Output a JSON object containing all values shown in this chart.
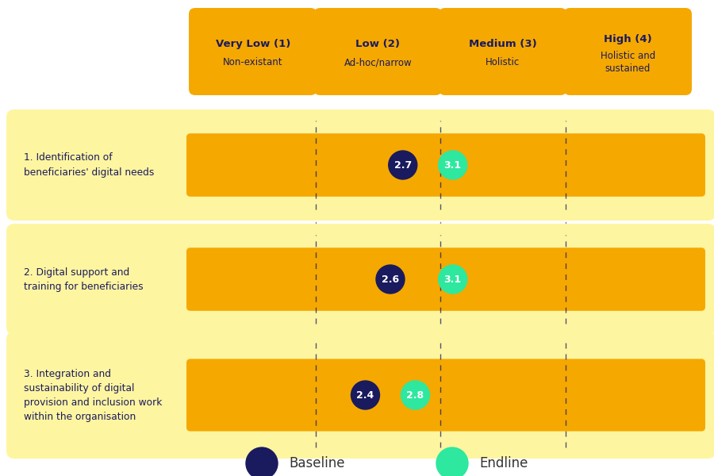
{
  "bg_color": "#ffffff",
  "header_bg": "#F5A800",
  "row_bg_light": "#FEF5A0",
  "row_bg_dark": "#F5A800",
  "header_text_color": "#1a1a5e",
  "row_text_color": "#1a1a5e",
  "dashed_line_color": "#1a1a5e",
  "baseline_color": "#1a1a5e",
  "endline_color": "#2de89e",
  "headers": [
    {
      "bold": "Very Low (1)",
      "sub": "Non-existant"
    },
    {
      "bold": "Low (2)",
      "sub": "Ad-hoc/narrow"
    },
    {
      "bold": "Medium (3)",
      "sub": "Holistic"
    },
    {
      "bold": "High (4)",
      "sub": "Holistic and\nsustained"
    }
  ],
  "rows": [
    {
      "label": "1. Identification of\nbeneficiaries' digital needs",
      "baseline": 2.7,
      "endline": 3.1
    },
    {
      "label": "2. Digital support and\ntraining for beneficiaries",
      "baseline": 2.6,
      "endline": 3.1
    },
    {
      "label": "3. Integration and\nsustainability of digital\nprovision and inclusion work\nwithin the organisation",
      "baseline": 2.4,
      "endline": 2.8
    }
  ],
  "legend_baseline_label": "Baseline",
  "legend_endline_label": "Endline"
}
